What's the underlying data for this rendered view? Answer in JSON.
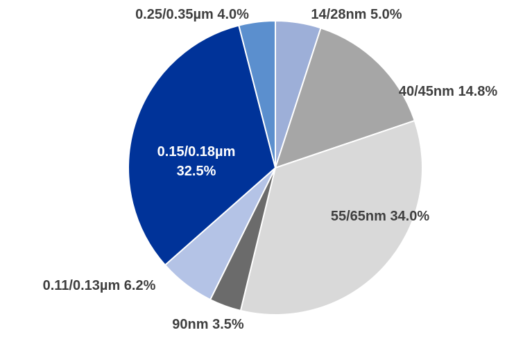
{
  "chart_data": {
    "type": "pie",
    "title": "",
    "start_angle_deg": 0,
    "direction": "clockwise",
    "slices": [
      {
        "label": "14/28nm",
        "value": 5.0,
        "percent_text": "5.0%",
        "color": "#9dafd8",
        "label_color": "#3f3f3f"
      },
      {
        "label": "40/45nm",
        "value": 14.8,
        "percent_text": "14.8%",
        "color": "#a6a6a6",
        "label_color": "#3f3f3f"
      },
      {
        "label": "55/65nm",
        "value": 34.0,
        "percent_text": "34.0%",
        "color": "#d9d9d9",
        "label_color": "#3f3f3f"
      },
      {
        "label": "90nm",
        "value": 3.5,
        "percent_text": "3.5%",
        "color": "#6b6b6b",
        "label_color": "#3f3f3f"
      },
      {
        "label": "0.11/0.13µm",
        "value": 6.2,
        "percent_text": "6.2%",
        "color": "#b4c3e6",
        "label_color": "#3f3f3f"
      },
      {
        "label": "0.15/0.18µm",
        "value": 32.5,
        "percent_text": "32.5%",
        "color": "#003399",
        "label_color": "#ffffff"
      },
      {
        "label": "0.25/0.35µm",
        "value": 4.0,
        "percent_text": "4.0%",
        "color": "#5b8fce",
        "label_color": "#3f3f3f"
      }
    ]
  }
}
